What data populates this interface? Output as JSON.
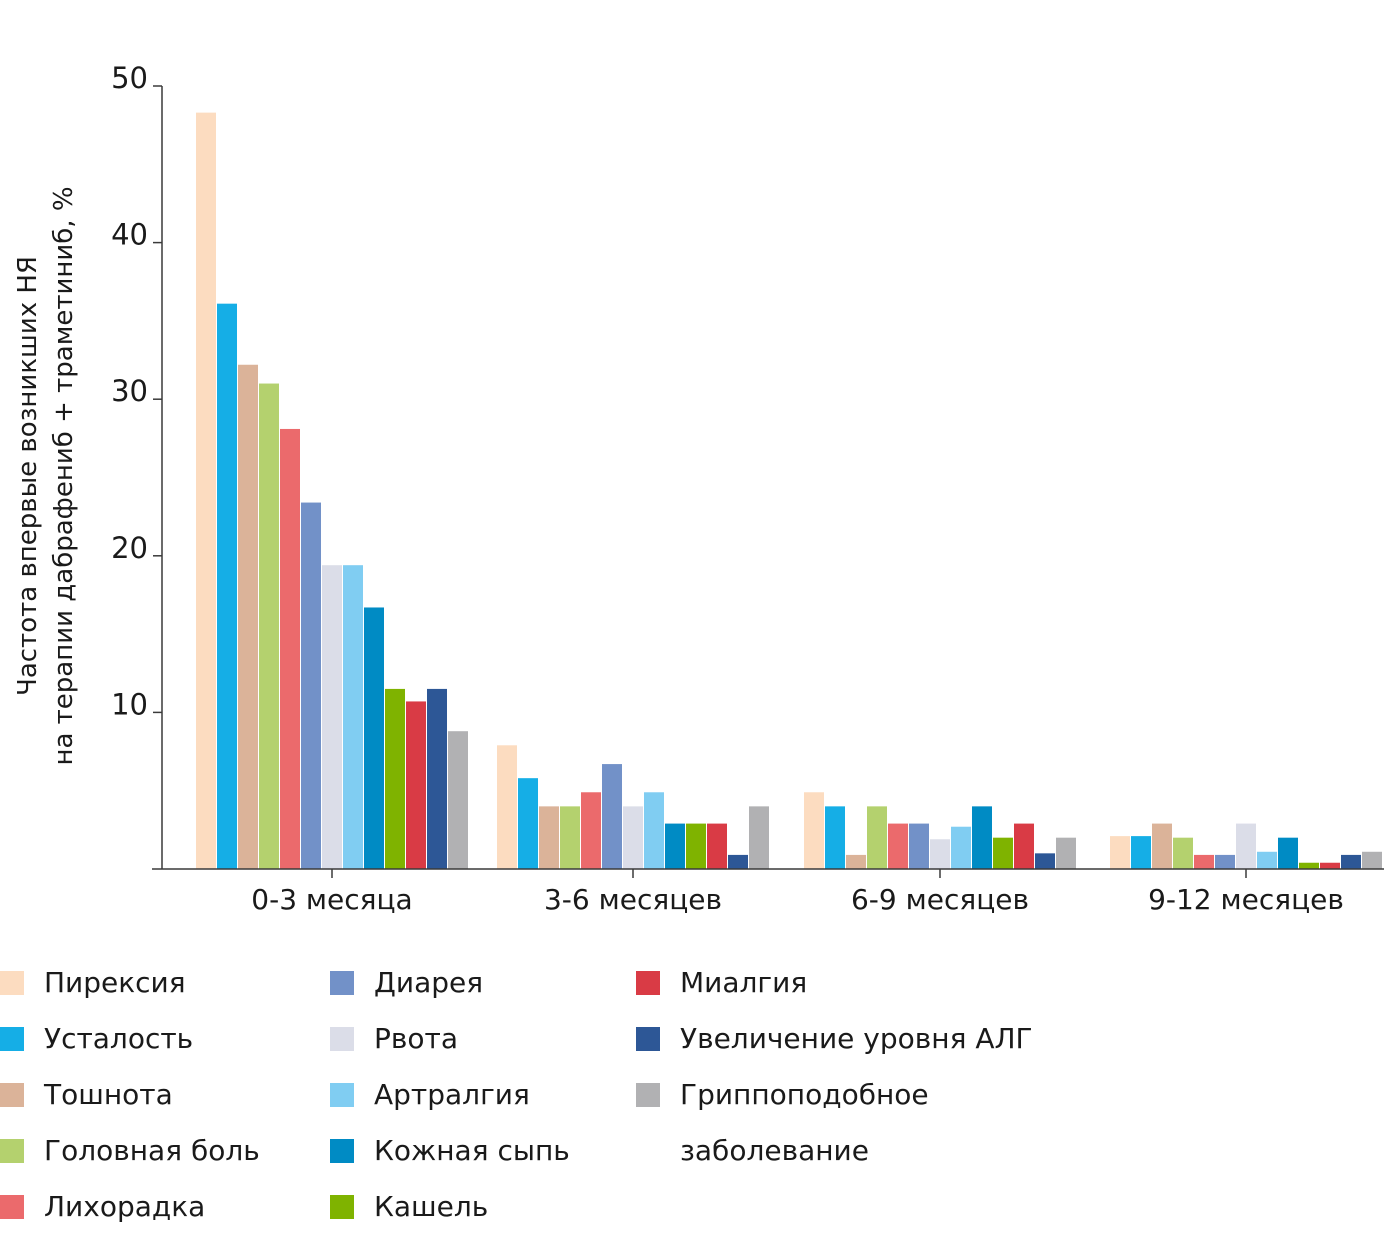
{
  "chart_data": {
    "type": "bar",
    "ylabel_line1": "Частота впервые возникших НЯ",
    "ylabel_line2": "на терапии дабрафениб + траметиниб, %",
    "ylim": [
      0,
      50
    ],
    "yticks": [
      "10",
      "20",
      "30",
      "40",
      "50"
    ],
    "categories": [
      "0-3 месяца",
      "3-6 месяцев",
      "6-9 месяцев",
      "9-12 месяцев"
    ],
    "series": [
      {
        "name": "Пирексия",
        "color": "#fcdcc0",
        "values": [
          48.3,
          7.9,
          4.9,
          2.1
        ]
      },
      {
        "name": "Усталость",
        "color": "#15aee6",
        "values": [
          36.1,
          5.8,
          4.0,
          2.1
        ]
      },
      {
        "name": "Тошнота",
        "color": "#dbb399",
        "values": [
          32.2,
          4.0,
          0.9,
          2.9
        ]
      },
      {
        "name": "Головная боль",
        "color": "#b4d16e",
        "values": [
          31.0,
          4.0,
          4.0,
          2.0
        ]
      },
      {
        "name": "Лихорадка",
        "color": "#eb6a6c",
        "values": [
          28.1,
          4.9,
          2.9,
          0.9
        ]
      },
      {
        "name": "Диарея",
        "color": "#7291c8",
        "values": [
          23.4,
          6.7,
          2.9,
          0.9
        ]
      },
      {
        "name": "Рвота",
        "color": "#dbdde8",
        "values": [
          19.4,
          4.0,
          1.9,
          2.9
        ]
      },
      {
        "name": "Артралгия",
        "color": "#80cdf2",
        "values": [
          19.4,
          4.9,
          2.7,
          1.1
        ]
      },
      {
        "name": "Кожная сыпь",
        "color": "#008bc4",
        "values": [
          16.7,
          2.9,
          4.0,
          2.0
        ]
      },
      {
        "name": "Кашель",
        "color": "#7fb300",
        "values": [
          11.5,
          2.9,
          2.0,
          0.4
        ]
      },
      {
        "name": "Миалгия",
        "color": "#d93b45",
        "values": [
          10.7,
          2.9,
          2.9,
          0.4
        ]
      },
      {
        "name": "Увеличение уровня АЛГ",
        "color": "#2d5796",
        "values": [
          11.5,
          0.9,
          1.0,
          0.9
        ]
      },
      {
        "name": "Гриппоподобное\nзаболевание",
        "color": "#b1b1b3",
        "values": [
          8.8,
          4.0,
          2.0,
          1.1
        ]
      }
    ],
    "legend_position": "bottom",
    "grid": false
  }
}
